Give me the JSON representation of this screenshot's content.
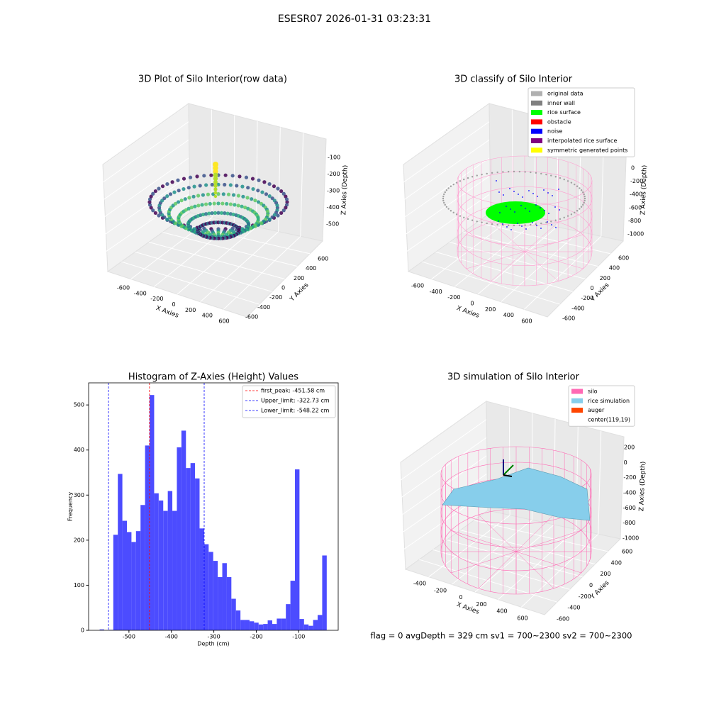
{
  "figure_title": "ESESR07 2026-01-31 03:23:31",
  "status_text": "flag = 0     avgDepth = 329 cm  sv1 = 700~2300  sv2 = 700~2300",
  "chart_data": [
    {
      "type": "scatter3d",
      "title": "3D Plot of Silo Interior(row data)",
      "xlabel": "X Axies",
      "ylabel": "Y Axies",
      "zlabel": "Z Axies (Depth)",
      "xticks": [
        -600,
        -400,
        -200,
        0,
        200,
        400,
        600
      ],
      "yticks": [
        -600,
        -400,
        -200,
        0,
        200,
        400,
        600
      ],
      "zticks": [
        -500,
        -400,
        -300,
        -200,
        -100
      ]
    },
    {
      "type": "classify3d",
      "title": "3D classify of Silo Interior",
      "xlabel": "X Axies",
      "ylabel": "Y Axies",
      "zlabel": "Z Axies (Depth)",
      "xticks": [
        -600,
        -400,
        -200,
        0,
        200,
        400,
        600
      ],
      "yticks": [
        -600,
        -400,
        -200,
        0,
        200,
        400,
        600
      ],
      "zticks": [
        -1000,
        -800,
        -600,
        -400,
        -200,
        0
      ],
      "legend": [
        {
          "name": "original data",
          "color": "#b0b0b0"
        },
        {
          "name": "inner wall",
          "color": "#808080"
        },
        {
          "name": "rice surface",
          "color": "#00ff00"
        },
        {
          "name": "obstacle",
          "color": "#ff0000"
        },
        {
          "name": "noise",
          "color": "#0000ff"
        },
        {
          "name": "interpolated rice surface",
          "color": "#800080"
        },
        {
          "name": "symmetric generated points",
          "color": "#ffff00"
        }
      ]
    },
    {
      "type": "histogram",
      "title": "Histogram of Z-Axies (Height) Values",
      "xlabel": "Depth (cm)",
      "ylabel": "Frequency",
      "color": "#4c4cff",
      "bins": [
        -569,
        -558.3,
        -547.6,
        -536.9,
        -526.2,
        -515.5,
        -504.8,
        -494.1,
        -483.4,
        -472.7,
        -462,
        -451.3,
        -440.6,
        -429.9,
        -419.2,
        -408.5,
        -397.8,
        -387.1,
        -376.4,
        -365.7,
        -355,
        -344.3,
        -333.6,
        -322.9,
        -312.2,
        -301.5,
        -290.8,
        -280.1,
        -269.4,
        -258.7,
        -248,
        -237.3,
        -226.6,
        -215.9,
        -205.2,
        -194.5,
        -183.8,
        -173.1,
        -162.4,
        -151.7,
        -141,
        -130.3,
        -119.6,
        -108.9,
        -98.2,
        -87.5,
        -76.8,
        -66.1,
        -55.4,
        -44.7,
        -34
      ],
      "values": [
        2,
        0,
        1,
        212,
        347,
        243,
        218,
        196,
        220,
        278,
        410,
        522,
        304,
        288,
        265,
        309,
        265,
        406,
        443,
        360,
        371,
        337,
        226,
        191,
        174,
        154,
        118,
        149,
        118,
        70,
        44,
        23,
        23,
        20,
        17,
        13,
        14,
        22,
        14,
        26,
        26,
        58,
        110,
        357,
        25,
        13,
        10,
        23,
        34,
        166
      ],
      "xlim": [
        -595,
        -7
      ],
      "ylim": [
        0,
        549
      ],
      "xticks": [
        -500,
        -400,
        -300,
        -200,
        -100
      ],
      "yticks": [
        0,
        100,
        200,
        300,
        400,
        500
      ],
      "lines": [
        {
          "name": "first_peak: -451.58 cm",
          "value": -451.58,
          "color": "#ff0000"
        },
        {
          "name": "Upper_limit: -322.73 cm",
          "value": -322.73,
          "color": "#0000ff"
        },
        {
          "name": "Lower_limit: -548.22 cm",
          "value": -548.22,
          "color": "#0000ff"
        }
      ],
      "legend_position": "upper right"
    },
    {
      "type": "simulation3d",
      "title": "3D simulation of Silo Interior",
      "xlabel": "X Axies",
      "ylabel": "Y Axies",
      "zlabel": "Z Axies (Depth)",
      "xticks": [
        -400,
        -200,
        0,
        200,
        400,
        600
      ],
      "yticks": [
        -600,
        -400,
        -200,
        0,
        200,
        400,
        600
      ],
      "zticks": [
        -1000,
        -800,
        -600,
        -400,
        -200,
        0,
        200
      ],
      "legend": [
        {
          "name": "silo",
          "color": "#ff69b4"
        },
        {
          "name": "rice simulation",
          "color": "#87ceeb"
        },
        {
          "name": "auger",
          "color": "#ff4500"
        },
        {
          "name": "center(119,19)",
          "color": "#ffffff"
        }
      ]
    }
  ]
}
